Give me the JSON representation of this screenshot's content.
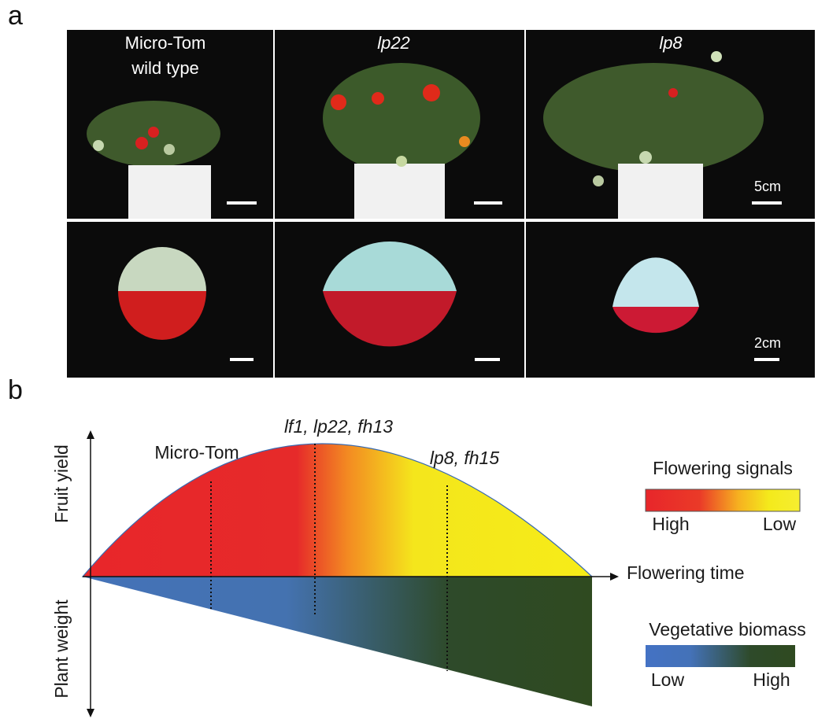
{
  "panel_a": {
    "label": "a",
    "columns": [
      {
        "title_lines": [
          "Micro-Tom",
          "wild type"
        ]
      },
      {
        "title": "lp22"
      },
      {
        "title": "lp8"
      }
    ],
    "scale_bars": [
      "5cm",
      "2cm"
    ]
  },
  "panel_b": {
    "label": "b",
    "y_axis_top": "Fruit yield",
    "y_axis_bottom": "Plant weight",
    "x_axis": "Flowering time",
    "points": [
      "Micro-Tom",
      "lf1, lp22, fh13",
      "lp8, fh15"
    ],
    "legend_top": {
      "title": "Flowering signals",
      "left": "High",
      "right": "Low"
    },
    "legend_bottom": {
      "title": "Vegetative biomass",
      "left": "Low",
      "right": "High"
    }
  }
}
